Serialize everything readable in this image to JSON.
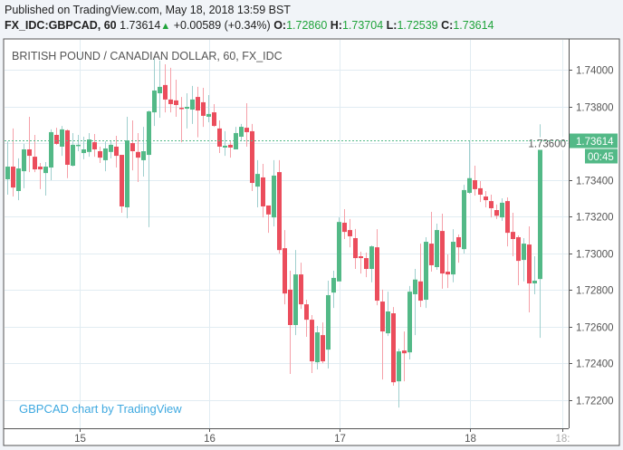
{
  "header": {
    "published": "Published on TradingView.com, May 18, 2018 13:59 BST",
    "symbol": "FX_IDC:GBPCAD, 60",
    "last": "1.73614",
    "change": "+0.00589 (+0.34%)",
    "o_label": "O:",
    "o": "1.72860",
    "h_label": "H:",
    "h": "1.73704",
    "l_label": "L:",
    "l": "1.72539",
    "c_label": "C:",
    "c": "1.73614"
  },
  "colors": {
    "up": "#53b987",
    "down": "#eb4d5c",
    "up_wick": "#9fcfce",
    "down_wick": "#f5a0a8",
    "grid": "#e1ecf2",
    "watermark": "#3fa9e0"
  },
  "chart_data": {
    "type": "candlestick",
    "title": "BRITISH POUND / CANADIAN DOLLAR, 60, FX_IDC",
    "watermark": "GBPCAD chart by TradingView",
    "interval": "60",
    "ylim": [
      1.7212,
      1.7419
    ],
    "yticks": [
      "1.74000",
      "1.73800",
      "1.73600",
      "1.73400",
      "1.73200",
      "1.73000",
      "1.72800",
      "1.72600",
      "1.72400",
      "1.72200"
    ],
    "xticks": [
      {
        "label": "15",
        "index": 13.3
      },
      {
        "label": "16",
        "index": 37.1
      },
      {
        "label": "17",
        "index": 61
      },
      {
        "label": "18",
        "index": 85
      },
      {
        "label": "18:",
        "index": 102
      }
    ],
    "last_price_label": "1.73614",
    "countdown": "00:45",
    "last_price": 1.73614,
    "ohlc": [
      [
        1.73404,
        1.73611,
        1.7332,
        1.73473
      ],
      [
        1.73473,
        1.73681,
        1.7331,
        1.73359
      ],
      [
        1.7334,
        1.73518,
        1.7329,
        1.73463
      ],
      [
        1.73448,
        1.73597,
        1.73355,
        1.73567
      ],
      [
        1.73567,
        1.73745,
        1.73443,
        1.73532
      ],
      [
        1.73527,
        1.73646,
        1.73443,
        1.73458
      ],
      [
        1.73473,
        1.73493,
        1.7335,
        1.73458
      ],
      [
        1.73438,
        1.73498,
        1.73315,
        1.73473
      ],
      [
        1.73468,
        1.73676,
        1.73399,
        1.73661
      ],
      [
        1.73646,
        1.73685,
        1.73592,
        1.73597
      ],
      [
        1.73582,
        1.73695,
        1.73532,
        1.73676
      ],
      [
        1.73671,
        1.73676,
        1.7341,
        1.73483
      ],
      [
        1.73478,
        1.73656,
        1.73473,
        1.73592
      ],
      [
        1.73587,
        1.73646,
        1.73557,
        1.73592
      ],
      [
        1.73547,
        1.73636,
        1.73513,
        1.73567
      ],
      [
        1.73553,
        1.73656,
        1.73527,
        1.73621
      ],
      [
        1.73606,
        1.73651,
        1.73527,
        1.73567
      ],
      [
        1.73557,
        1.73582,
        1.73493,
        1.73522
      ],
      [
        1.73508,
        1.73611,
        1.73448,
        1.73572
      ],
      [
        1.73553,
        1.73616,
        1.73518,
        1.73592
      ],
      [
        1.73582,
        1.73641,
        1.73468,
        1.73532
      ],
      [
        1.73537,
        1.73537,
        1.73221,
        1.73256
      ],
      [
        1.73251,
        1.73745,
        1.73192,
        1.73616
      ],
      [
        1.73601,
        1.73725,
        1.73453,
        1.73557
      ],
      [
        1.73553,
        1.73656,
        1.73389,
        1.73522
      ],
      [
        1.73508,
        1.7369,
        1.73419,
        1.73557
      ],
      [
        1.73537,
        1.73779,
        1.73143,
        1.73774
      ],
      [
        1.73769,
        1.74061,
        1.73695,
        1.73888
      ],
      [
        1.73873,
        1.74051,
        1.7374,
        1.73908
      ],
      [
        1.73918,
        1.74031,
        1.73769,
        1.73839
      ],
      [
        1.73839,
        1.74012,
        1.73769,
        1.73814
      ],
      [
        1.73834,
        1.73947,
        1.73745,
        1.73809
      ],
      [
        1.73794,
        1.73853,
        1.73606,
        1.73789
      ],
      [
        1.73789,
        1.73873,
        1.73681,
        1.73799
      ],
      [
        1.73784,
        1.73913,
        1.73706,
        1.73839
      ],
      [
        1.73853,
        1.73908,
        1.73633,
        1.73779
      ],
      [
        1.73824,
        1.73903,
        1.7369,
        1.7375
      ],
      [
        1.73745,
        1.73863,
        1.73715,
        1.7376
      ],
      [
        1.73769,
        1.73814,
        1.7369,
        1.73695
      ],
      [
        1.73681,
        1.73725,
        1.73547,
        1.73582
      ],
      [
        1.73577,
        1.73666,
        1.73532,
        1.73587
      ],
      [
        1.73592,
        1.73611,
        1.73522,
        1.73577
      ],
      [
        1.73567,
        1.7369,
        1.73567,
        1.73656
      ],
      [
        1.73636,
        1.73706,
        1.73611,
        1.7369
      ],
      [
        1.73685,
        1.73819,
        1.73582,
        1.73661
      ],
      [
        1.73666,
        1.73706,
        1.7334,
        1.73384
      ],
      [
        1.73364,
        1.73508,
        1.73251,
        1.73433
      ],
      [
        1.73414,
        1.73488,
        1.73196,
        1.73256
      ],
      [
        1.73261,
        1.73261,
        1.73112,
        1.73212
      ],
      [
        1.73196,
        1.73508,
        1.73147,
        1.73424
      ],
      [
        1.73443,
        1.73508,
        1.72999,
        1.73018
      ],
      [
        1.73028,
        1.73127,
        1.72722,
        1.72781
      ],
      [
        1.72802,
        1.72905,
        1.72342,
        1.72609
      ],
      [
        1.72609,
        1.73018,
        1.72554,
        1.72885
      ],
      [
        1.72885,
        1.72949,
        1.72697,
        1.72722
      ],
      [
        1.72722,
        1.72747,
        1.72545,
        1.72638
      ],
      [
        1.72638,
        1.72663,
        1.72347,
        1.72411
      ],
      [
        1.72406,
        1.72604,
        1.72367,
        1.72569
      ],
      [
        1.72554,
        1.72623,
        1.72401,
        1.72411
      ],
      [
        1.72475,
        1.72851,
        1.72372,
        1.72772
      ],
      [
        1.72786,
        1.72905,
        1.72702,
        1.72866
      ],
      [
        1.72847,
        1.73196,
        1.72847,
        1.73171
      ],
      [
        1.73167,
        1.73241,
        1.73078,
        1.73117
      ],
      [
        1.73127,
        1.73187,
        1.73033,
        1.73093
      ],
      [
        1.73083,
        1.73133,
        1.72915,
        1.72974
      ],
      [
        1.72984,
        1.73009,
        1.7289,
        1.72974
      ],
      [
        1.72974,
        1.73004,
        1.7287,
        1.72915
      ],
      [
        1.72915,
        1.73043,
        1.72842,
        1.73038
      ],
      [
        1.73033,
        1.73132,
        1.72717,
        1.72742
      ],
      [
        1.72737,
        1.72802,
        1.72312,
        1.72574
      ],
      [
        1.72564,
        1.72791,
        1.72549,
        1.72683
      ],
      [
        1.72673,
        1.72707,
        1.72278,
        1.72297
      ],
      [
        1.72302,
        1.7248,
        1.72159,
        1.72465
      ],
      [
        1.7247,
        1.72574,
        1.72302,
        1.72455
      ],
      [
        1.7246,
        1.72822,
        1.72421,
        1.72791
      ],
      [
        1.72777,
        1.72915,
        1.72554,
        1.72857
      ],
      [
        1.72847,
        1.73053,
        1.72707,
        1.72742
      ],
      [
        1.72747,
        1.73088,
        1.72702,
        1.73063
      ],
      [
        1.73053,
        1.73226,
        1.729,
        1.72935
      ],
      [
        1.72925,
        1.73162,
        1.7291,
        1.73127
      ],
      [
        1.73122,
        1.73216,
        1.72807,
        1.7289
      ],
      [
        1.729,
        1.72994,
        1.72811,
        1.72885
      ],
      [
        1.72885,
        1.73132,
        1.72842,
        1.73063
      ],
      [
        1.73088,
        1.73103,
        1.72949,
        1.73033
      ],
      [
        1.73023,
        1.73374,
        1.72999,
        1.73345
      ],
      [
        1.7333,
        1.73616,
        1.73325,
        1.7341
      ],
      [
        1.73399,
        1.73478,
        1.73315,
        1.7335
      ],
      [
        1.73355,
        1.73394,
        1.7328,
        1.7332
      ],
      [
        1.7331,
        1.7334,
        1.73251,
        1.7329
      ],
      [
        1.73285,
        1.7332,
        1.73196,
        1.73246
      ],
      [
        1.73236,
        1.73266,
        1.73187,
        1.73205
      ],
      [
        1.73196,
        1.733,
        1.73177,
        1.73276
      ],
      [
        1.73285,
        1.73305,
        1.73038,
        1.73112
      ],
      [
        1.73117,
        1.73221,
        1.72984,
        1.73078
      ],
      [
        1.73088,
        1.73098,
        1.72826,
        1.72959
      ],
      [
        1.72964,
        1.73083,
        1.72847,
        1.73053
      ],
      [
        1.73048,
        1.73147,
        1.72678,
        1.72836
      ],
      [
        1.72836,
        1.72984,
        1.72777,
        1.72851
      ],
      [
        1.7286,
        1.73704,
        1.72539,
        1.73614
      ]
    ]
  }
}
